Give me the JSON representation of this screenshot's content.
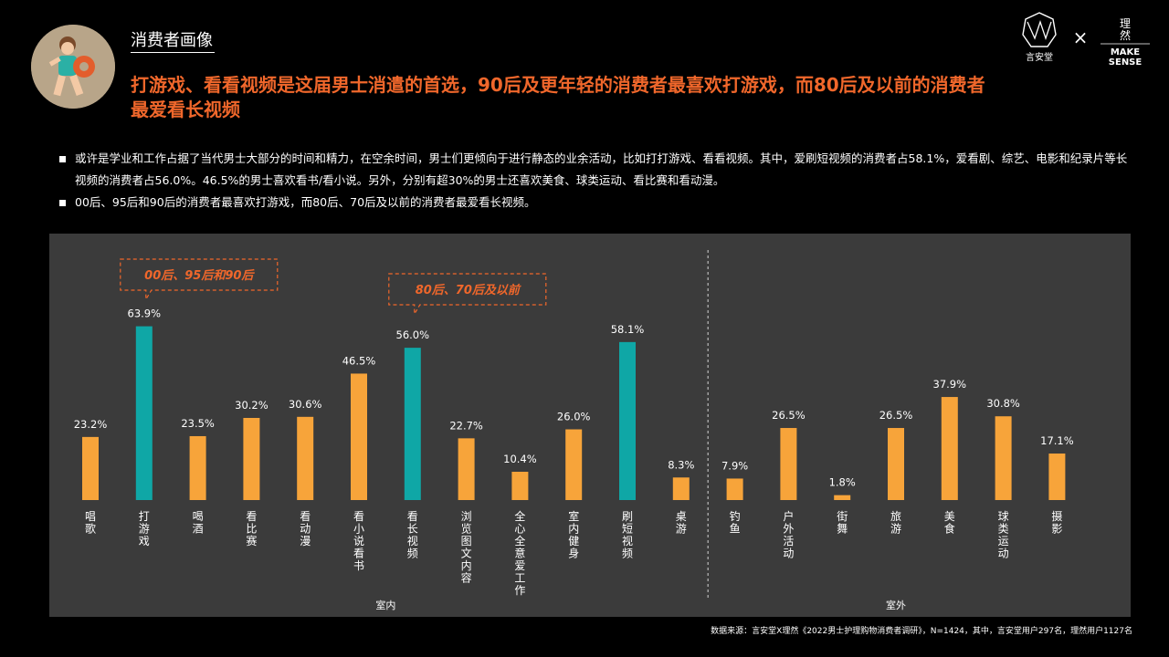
{
  "header": {
    "section_title": "消费者画像",
    "headline": "打游戏、看看视频是这届男士消遣的首选，90后及更年轻的消费者最喜欢打游戏，而80后及以前的消费者最爱看长视频",
    "brand_left": "言安堂",
    "brand_times": "×",
    "brand_right_cn_1": "理",
    "brand_right_cn_2": "然",
    "brand_right_en_1": "MAKE",
    "brand_right_en_2": "SENSE"
  },
  "bullets": [
    "或许是学业和工作占据了当代男士大部分的时间和精力，在空余时间，男士们更倾向于进行静态的业余活动，比如打打游戏、看看视频。其中，爱刷短视频的消费者占58.1%，爱看剧、综艺、电影和纪录片等长视频的消费者占56.0%。46.5%的男士喜欢看书/看小说。另外，分别有超30%的男士还喜欢美食、球类运动、看比赛和看动漫。",
    "00后、95后和90后的消费者最喜欢打游戏，而80后、70后及以前的消费者最爱看长视频。"
  ],
  "chart_data": {
    "type": "bar",
    "categories": [
      "唱歌",
      "打游戏",
      "喝酒",
      "看比赛",
      "看动漫",
      "看小说/看书",
      "看长视频",
      "浏览图文内容",
      "全心全意爱工作",
      "室内健身",
      "刷短视频",
      "桌游",
      "钓鱼",
      "户外活动",
      "街舞",
      "旅游",
      "美食",
      "球类运动",
      "摄影"
    ],
    "values": [
      23.2,
      63.9,
      23.5,
      30.2,
      30.6,
      46.5,
      56.0,
      22.7,
      10.4,
      26.0,
      58.1,
      8.3,
      7.9,
      26.5,
      1.8,
      26.5,
      37.9,
      30.8,
      17.1
    ],
    "value_labels": [
      "23.2%",
      "63.9%",
      "23.5%",
      "30.2%",
      "30.6%",
      "46.5%",
      "56.0%",
      "22.7%",
      "10.4%",
      "26.0%",
      "58.1%",
      "8.3%",
      "7.9%",
      "26.5%",
      "1.8%",
      "26.5%",
      "37.9%",
      "30.8%",
      "17.1%"
    ],
    "highlight": [
      false,
      true,
      false,
      false,
      false,
      false,
      true,
      false,
      false,
      false,
      true,
      false,
      false,
      false,
      false,
      false,
      false,
      false,
      false
    ],
    "groups": [
      {
        "name": "室内",
        "start": 0,
        "end": 11
      },
      {
        "name": "室外",
        "start": 12,
        "end": 18
      }
    ],
    "annotations": [
      {
        "text": "00后、95后和90后",
        "target_index": 1
      },
      {
        "text": "80后、70后及以前",
        "target_index": 6
      }
    ],
    "unit": "%",
    "ylim": [
      0,
      70
    ],
    "colors": {
      "normal": "#f7a43a",
      "highlight": "#0fa7a6",
      "annotation": "#f0672b",
      "background": "#3b3b3b"
    }
  },
  "footer": {
    "source": "数据来源：言安堂X理然《2022男士护理购物消费者调研》，N=1424，其中，言安堂用户297名，理然用户1127名"
  }
}
